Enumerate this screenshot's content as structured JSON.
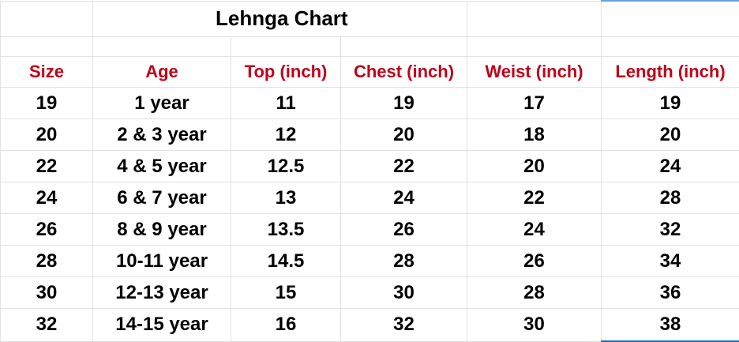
{
  "title": "Lehnga Chart",
  "headers": [
    "Size",
    "Age",
    "Top (inch)",
    "Chest (inch)",
    "Weist (inch)",
    "Length (inch)"
  ],
  "rows": [
    [
      "19",
      "1 year",
      "11",
      "19",
      "17",
      "19"
    ],
    [
      "20",
      "2 & 3 year",
      "12",
      "20",
      "18",
      "20"
    ],
    [
      "22",
      "4 & 5 year",
      "12.5",
      "22",
      "20",
      "24"
    ],
    [
      "24",
      "6 & 7 year",
      "13",
      "24",
      "22",
      "28"
    ],
    [
      "26",
      "8 & 9 year",
      "13.5",
      "26",
      "24",
      "32"
    ],
    [
      "28",
      "10-11 year",
      "14.5",
      "28",
      "26",
      "34"
    ],
    [
      "30",
      "12-13 year",
      "15",
      "30",
      "28",
      "36"
    ],
    [
      "32",
      "14-15 year",
      "16",
      "32",
      "30",
      "38"
    ]
  ],
  "colors": {
    "header_text": "#c0001a",
    "gridline": "#e2e2e2",
    "selection": "#1e6fc2"
  }
}
